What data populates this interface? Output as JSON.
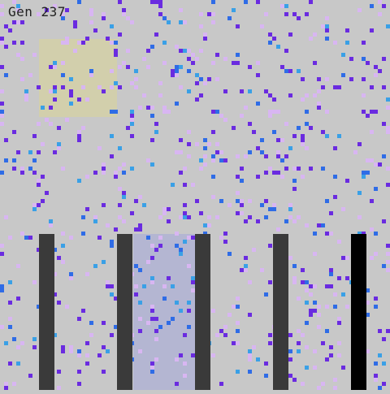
{
  "hud": {
    "generation_label": "Gen 237"
  },
  "colors": {
    "background": "#c8c8c8",
    "wall": "#3a3a3a",
    "wall_highlight": "#000000",
    "zone_yellow": "#d2cfac",
    "zone_blue": "#b4b6d2",
    "particle_violet": "#6a2be0",
    "particle_lavender": "#d8b6f2",
    "particle_blue": "#2f6ce6",
    "particle_sky": "#3aa0e6"
  }
}
